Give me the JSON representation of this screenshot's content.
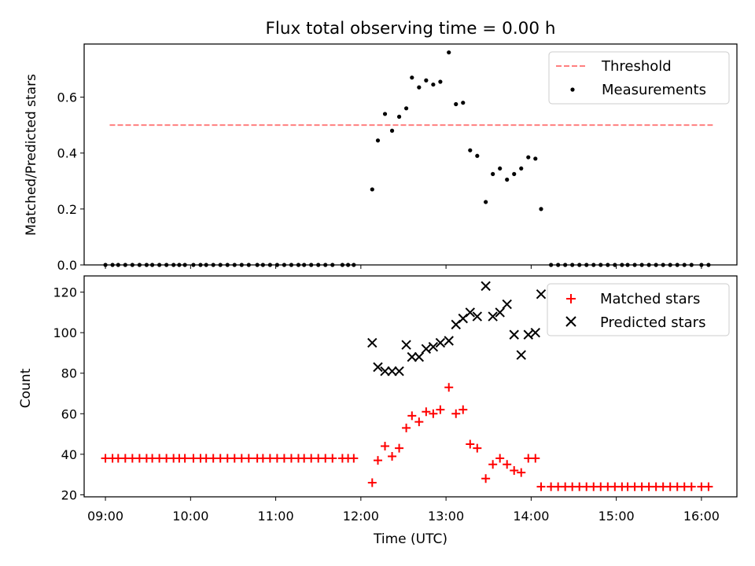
{
  "figure": {
    "title": "Flux total observing time = 0.00 h",
    "xlabel": "Time (UTC)"
  },
  "chart_data": [
    {
      "type": "scatter",
      "ylabel": "Matched/Predicted stars",
      "xlim": [
        "08:45",
        "16:25"
      ],
      "ylim": [
        0,
        0.79
      ],
      "yticks": [
        0.0,
        0.2,
        0.4,
        0.6
      ],
      "ytick_labels": [
        "0.0",
        "0.2",
        "0.4",
        "0.6"
      ],
      "xticks": [
        "09:00",
        "10:00",
        "11:00",
        "12:00",
        "13:00",
        "14:00",
        "15:00",
        "16:00"
      ],
      "xtick_labels": [],
      "grid": false,
      "legend_position": "top-right",
      "legend": [
        {
          "label": "Threshold",
          "style": "dashed-line",
          "color": "#ff7f7f"
        },
        {
          "label": "Measurements",
          "style": "dot",
          "color": "#000000"
        }
      ],
      "threshold": {
        "name": "Threshold",
        "y": 0.5,
        "x_start": "09:03",
        "x_end": "16:08",
        "color": "#ff7f7f"
      },
      "series": [
        {
          "name": "Measurements",
          "marker": "dot",
          "color": "#000000",
          "points": [
            [
              "09:00",
              0
            ],
            [
              "09:05",
              0
            ],
            [
              "09:09",
              0
            ],
            [
              "09:14",
              0
            ],
            [
              "09:19",
              0
            ],
            [
              "09:24",
              0
            ],
            [
              "09:29",
              0
            ],
            [
              "09:33",
              0
            ],
            [
              "09:38",
              0
            ],
            [
              "09:43",
              0
            ],
            [
              "09:48",
              0
            ],
            [
              "09:52",
              0
            ],
            [
              "09:56",
              0
            ],
            [
              "10:02",
              0
            ],
            [
              "10:07",
              0
            ],
            [
              "10:11",
              0
            ],
            [
              "10:16",
              0
            ],
            [
              "10:21",
              0
            ],
            [
              "10:26",
              0
            ],
            [
              "10:31",
              0
            ],
            [
              "10:36",
              0
            ],
            [
              "10:41",
              0
            ],
            [
              "10:47",
              0
            ],
            [
              "10:51",
              0
            ],
            [
              "10:56",
              0
            ],
            [
              "11:01",
              0
            ],
            [
              "11:06",
              0
            ],
            [
              "11:11",
              0
            ],
            [
              "11:16",
              0
            ],
            [
              "11:20",
              0
            ],
            [
              "11:25",
              0
            ],
            [
              "11:30",
              0
            ],
            [
              "11:35",
              0
            ],
            [
              "11:40",
              0
            ],
            [
              "11:47",
              0
            ],
            [
              "11:51",
              0
            ],
            [
              "11:55",
              0
            ],
            [
              "12:08",
              0.27
            ],
            [
              "12:12",
              0.445
            ],
            [
              "12:17",
              0.54
            ],
            [
              "12:22",
              0.48
            ],
            [
              "12:27",
              0.53
            ],
            [
              "12:32",
              0.56
            ],
            [
              "12:36",
              0.67
            ],
            [
              "12:41",
              0.635
            ],
            [
              "12:46",
              0.66
            ],
            [
              "12:51",
              0.645
            ],
            [
              "12:56",
              0.655
            ],
            [
              "13:02",
              0.76
            ],
            [
              "13:07",
              0.575
            ],
            [
              "13:12",
              0.58
            ],
            [
              "13:17",
              0.41
            ],
            [
              "13:22",
              0.39
            ],
            [
              "13:28",
              0.225
            ],
            [
              "13:33",
              0.325
            ],
            [
              "13:38",
              0.345
            ],
            [
              "13:43",
              0.305
            ],
            [
              "13:48",
              0.325
            ],
            [
              "13:53",
              0.345
            ],
            [
              "13:58",
              0.385
            ],
            [
              "14:03",
              0.38
            ],
            [
              "14:07",
              0.2
            ],
            [
              "14:14",
              0
            ],
            [
              "14:19",
              0
            ],
            [
              "14:24",
              0
            ],
            [
              "14:29",
              0
            ],
            [
              "14:34",
              0
            ],
            [
              "14:39",
              0
            ],
            [
              "14:44",
              0
            ],
            [
              "14:49",
              0
            ],
            [
              "14:54",
              0
            ],
            [
              "14:59",
              0
            ],
            [
              "15:04",
              0
            ],
            [
              "15:08",
              0
            ],
            [
              "15:13",
              0
            ],
            [
              "15:18",
              0
            ],
            [
              "15:23",
              0
            ],
            [
              "15:28",
              0
            ],
            [
              "15:33",
              0
            ],
            [
              "15:38",
              0
            ],
            [
              "15:43",
              0
            ],
            [
              "15:48",
              0
            ],
            [
              "15:53",
              0
            ],
            [
              "16:00",
              0
            ],
            [
              "16:05",
              0
            ]
          ]
        }
      ]
    },
    {
      "type": "scatter",
      "ylabel": "Count",
      "xlabel": "Time (UTC)",
      "xlim": [
        "08:45",
        "16:25"
      ],
      "ylim": [
        19,
        128
      ],
      "yticks": [
        20,
        40,
        60,
        80,
        100,
        120
      ],
      "ytick_labels": [
        "20",
        "40",
        "60",
        "80",
        "100",
        "120"
      ],
      "xticks": [
        "09:00",
        "10:00",
        "11:00",
        "12:00",
        "13:00",
        "14:00",
        "15:00",
        "16:00"
      ],
      "xtick_labels": [
        "09:00",
        "10:00",
        "11:00",
        "12:00",
        "13:00",
        "14:00",
        "15:00",
        "16:00"
      ],
      "grid": false,
      "legend_position": "top-right",
      "legend": [
        {
          "label": "Matched stars",
          "style": "plus",
          "color": "#ff0000"
        },
        {
          "label": "Predicted stars",
          "style": "x",
          "color": "#000000"
        }
      ],
      "series": [
        {
          "name": "Matched stars",
          "marker": "plus",
          "color": "#ff0000",
          "points": [
            [
              "09:00",
              38
            ],
            [
              "09:05",
              38
            ],
            [
              "09:09",
              38
            ],
            [
              "09:14",
              38
            ],
            [
              "09:19",
              38
            ],
            [
              "09:24",
              38
            ],
            [
              "09:29",
              38
            ],
            [
              "09:33",
              38
            ],
            [
              "09:38",
              38
            ],
            [
              "09:43",
              38
            ],
            [
              "09:48",
              38
            ],
            [
              "09:52",
              38
            ],
            [
              "09:56",
              38
            ],
            [
              "10:02",
              38
            ],
            [
              "10:07",
              38
            ],
            [
              "10:11",
              38
            ],
            [
              "10:16",
              38
            ],
            [
              "10:21",
              38
            ],
            [
              "10:26",
              38
            ],
            [
              "10:31",
              38
            ],
            [
              "10:36",
              38
            ],
            [
              "10:41",
              38
            ],
            [
              "10:47",
              38
            ],
            [
              "10:51",
              38
            ],
            [
              "10:56",
              38
            ],
            [
              "11:01",
              38
            ],
            [
              "11:06",
              38
            ],
            [
              "11:11",
              38
            ],
            [
              "11:16",
              38
            ],
            [
              "11:20",
              38
            ],
            [
              "11:25",
              38
            ],
            [
              "11:30",
              38
            ],
            [
              "11:35",
              38
            ],
            [
              "11:40",
              38
            ],
            [
              "11:47",
              38
            ],
            [
              "11:51",
              38
            ],
            [
              "11:55",
              38
            ],
            [
              "12:08",
              26
            ],
            [
              "12:12",
              37
            ],
            [
              "12:17",
              44
            ],
            [
              "12:22",
              39
            ],
            [
              "12:27",
              43
            ],
            [
              "12:32",
              53
            ],
            [
              "12:36",
              59
            ],
            [
              "12:41",
              56
            ],
            [
              "12:46",
              61
            ],
            [
              "12:51",
              60
            ],
            [
              "12:56",
              62
            ],
            [
              "13:02",
              73
            ],
            [
              "13:07",
              60
            ],
            [
              "13:12",
              62
            ],
            [
              "13:17",
              45
            ],
            [
              "13:22",
              43
            ],
            [
              "13:28",
              28
            ],
            [
              "13:33",
              35
            ],
            [
              "13:38",
              38
            ],
            [
              "13:43",
              35
            ],
            [
              "13:48",
              32
            ],
            [
              "13:53",
              31
            ],
            [
              "13:58",
              38
            ],
            [
              "14:03",
              38
            ],
            [
              "14:07",
              24
            ],
            [
              "14:14",
              24
            ],
            [
              "14:19",
              24
            ],
            [
              "14:24",
              24
            ],
            [
              "14:29",
              24
            ],
            [
              "14:34",
              24
            ],
            [
              "14:39",
              24
            ],
            [
              "14:44",
              24
            ],
            [
              "14:49",
              24
            ],
            [
              "14:54",
              24
            ],
            [
              "14:59",
              24
            ],
            [
              "15:04",
              24
            ],
            [
              "15:08",
              24
            ],
            [
              "15:13",
              24
            ],
            [
              "15:18",
              24
            ],
            [
              "15:23",
              24
            ],
            [
              "15:28",
              24
            ],
            [
              "15:33",
              24
            ],
            [
              "15:38",
              24
            ],
            [
              "15:43",
              24
            ],
            [
              "15:48",
              24
            ],
            [
              "15:53",
              24
            ],
            [
              "16:00",
              24
            ],
            [
              "16:05",
              24
            ]
          ]
        },
        {
          "name": "Predicted stars",
          "marker": "x",
          "color": "#000000",
          "points": [
            [
              "12:08",
              95
            ],
            [
              "12:12",
              83
            ],
            [
              "12:17",
              81
            ],
            [
              "12:22",
              81
            ],
            [
              "12:27",
              81
            ],
            [
              "12:32",
              94
            ],
            [
              "12:36",
              88
            ],
            [
              "12:41",
              88
            ],
            [
              "12:46",
              92
            ],
            [
              "12:51",
              93
            ],
            [
              "12:56",
              95
            ],
            [
              "13:02",
              96
            ],
            [
              "13:07",
              104
            ],
            [
              "13:12",
              107
            ],
            [
              "13:17",
              110
            ],
            [
              "13:22",
              108
            ],
            [
              "13:28",
              123
            ],
            [
              "13:33",
              108
            ],
            [
              "13:38",
              110
            ],
            [
              "13:43",
              114
            ],
            [
              "13:48",
              99
            ],
            [
              "13:53",
              89
            ],
            [
              "13:58",
              99
            ],
            [
              "14:03",
              100
            ],
            [
              "14:07",
              119
            ]
          ]
        }
      ]
    }
  ]
}
